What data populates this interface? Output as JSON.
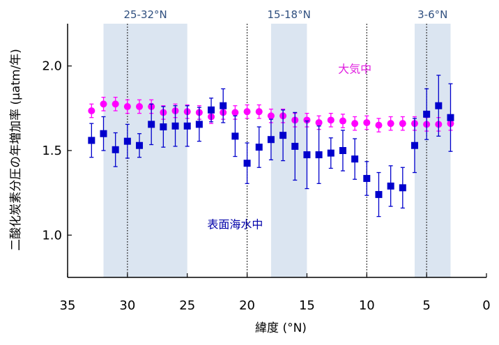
{
  "chart_data": {
    "type": "scatter",
    "xlabel": "緯度 (°N)",
    "ylabel": "二酸化炭素分圧の年増加率 (μatm/年)",
    "xlim": [
      35,
      0
    ],
    "ylim": [
      0.75,
      2.25
    ],
    "x_reversed": true,
    "x_ticks": [
      "35",
      "30",
      "25",
      "20",
      "15",
      "10",
      "5",
      "0"
    ],
    "y_ticks": [
      "1.0",
      "1.5",
      "2.0"
    ],
    "grid": false,
    "bands": [
      {
        "label": "25-32°N",
        "from": 32,
        "to": 25,
        "color": "#dbe5f1"
      },
      {
        "label": "15-18°N",
        "from": 18,
        "to": 15,
        "color": "#dbe5f1"
      },
      {
        "label": "3-6°N",
        "from": 6,
        "to": 3,
        "color": "#dbe5f1"
      }
    ],
    "vlines": [
      30,
      20,
      10,
      5
    ],
    "series": [
      {
        "name": "大気中",
        "color": "#ff00ff",
        "marker": "circle",
        "x": [
          33,
          32,
          31,
          30,
          29,
          28,
          27,
          26,
          25,
          24,
          23,
          22,
          21,
          20,
          19,
          18,
          17,
          16,
          15,
          14,
          13,
          12,
          11,
          10,
          9,
          8,
          7,
          6,
          5,
          4,
          3
        ],
        "y": [
          1.735,
          1.775,
          1.775,
          1.76,
          1.76,
          1.76,
          1.725,
          1.735,
          1.73,
          1.725,
          1.7,
          1.725,
          1.725,
          1.73,
          1.73,
          1.705,
          1.705,
          1.68,
          1.68,
          1.665,
          1.68,
          1.675,
          1.66,
          1.665,
          1.65,
          1.66,
          1.66,
          1.66,
          1.655,
          1.655,
          1.66
        ],
        "err": [
          0.04,
          0.04,
          0.04,
          0.04,
          0.04,
          0.04,
          0.04,
          0.04,
          0.04,
          0.04,
          0.04,
          0.04,
          0.04,
          0.04,
          0.04,
          0.04,
          0.04,
          0.04,
          0.04,
          0.04,
          0.04,
          0.04,
          0.04,
          0.04,
          0.04,
          0.04,
          0.04,
          0.04,
          0.04,
          0.04,
          0.04
        ]
      },
      {
        "name": "表面海水中",
        "color": "#0000cc",
        "marker": "square",
        "x": [
          33,
          32,
          31,
          30,
          29,
          28,
          27,
          26,
          25,
          24,
          23,
          22,
          21,
          20,
          19,
          18,
          17,
          16,
          15,
          14,
          13,
          12,
          11,
          10,
          9,
          8,
          7,
          6,
          5,
          4,
          3
        ],
        "y": [
          1.56,
          1.6,
          1.505,
          1.555,
          1.53,
          1.655,
          1.64,
          1.645,
          1.645,
          1.655,
          1.74,
          1.765,
          1.585,
          1.425,
          1.52,
          1.565,
          1.59,
          1.525,
          1.475,
          1.475,
          1.485,
          1.5,
          1.45,
          1.335,
          1.24,
          1.29,
          1.28,
          1.53,
          1.715,
          1.765,
          1.695
        ],
        "err": [
          0.1,
          0.1,
          0.1,
          0.1,
          0.07,
          0.12,
          0.12,
          0.12,
          0.12,
          0.1,
          0.07,
          0.1,
          0.12,
          0.12,
          0.12,
          0.12,
          0.15,
          0.2,
          0.2,
          0.17,
          0.09,
          0.12,
          0.12,
          0.1,
          0.13,
          0.12,
          0.12,
          0.16,
          0.15,
          0.18,
          0.2
        ]
      }
    ],
    "annotations": [
      {
        "text": "大気中",
        "x": 11,
        "y": 1.96,
        "color": "#e020e0"
      },
      {
        "text": "表面海水中",
        "x": 21,
        "y": 1.04,
        "color": "#0000aa"
      }
    ]
  }
}
